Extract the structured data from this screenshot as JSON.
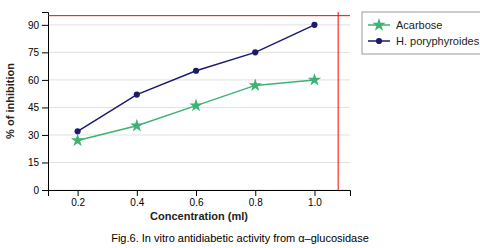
{
  "chart_data": {
    "type": "line",
    "title": "Fig.6. In vitro antidiabetic activity from α–glucosidase",
    "x_label": "Concentration (ml)",
    "y_label": "% of inhibition",
    "x": [
      0.2,
      0.4,
      0.6,
      0.8,
      1.0
    ],
    "series": [
      {
        "name": "Acarbose",
        "color": "#3cb371",
        "marker": "star",
        "values": [
          27,
          35,
          46,
          57,
          60
        ]
      },
      {
        "name": "H. poryphyroides",
        "color": "#1a1a6e",
        "marker": "circle",
        "values": [
          32,
          52,
          65,
          75,
          90
        ]
      }
    ],
    "xlim": [
      0.1,
      1.12
    ],
    "ylim": [
      0,
      97
    ],
    "xticks": [
      0.2,
      0.4,
      0.6,
      0.8,
      {
        "value": 1.0,
        "label": "1.0"
      }
    ],
    "yticks": [
      0,
      15,
      30,
      45,
      60,
      75,
      90
    ],
    "hlines": [
      {
        "value": 95,
        "color": "red"
      }
    ],
    "vlines": [
      {
        "value": 1.08,
        "color": "red"
      }
    ],
    "grid": "y",
    "legend": "right"
  }
}
